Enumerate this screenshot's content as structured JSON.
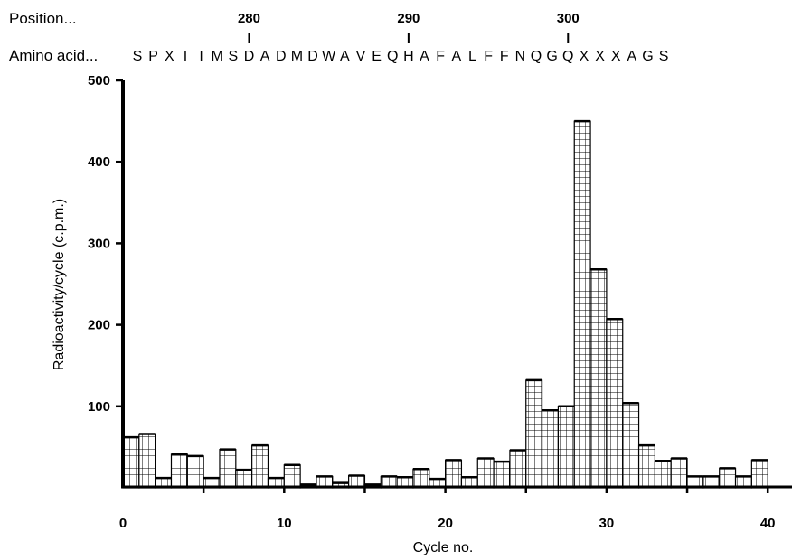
{
  "header": {
    "position_label": "Position...",
    "amino_acid_label": "Amino acid...",
    "position_marks": [
      {
        "label": "280",
        "residue_index": 7
      },
      {
        "label": "290",
        "residue_index": 17
      },
      {
        "label": "300",
        "residue_index": 27
      }
    ],
    "sequence": [
      "S",
      "P",
      "X",
      "I",
      "I",
      "M",
      "S",
      "D",
      "A",
      "D",
      "M",
      "D",
      "W",
      "A",
      "V",
      "E",
      "Q",
      "H",
      "A",
      "F",
      "A",
      "L",
      "F",
      "F",
      "N",
      "Q",
      "G",
      "Q",
      "X",
      "X",
      "X",
      "A",
      "G",
      "S"
    ]
  },
  "chart_data": {
    "type": "bar",
    "style": "histogram, grid-hatched bars, no gaps",
    "xlabel": "Cycle no.",
    "ylabel": "Radioactivity/cycle (c.p.m.)",
    "xlim": [
      0,
      42
    ],
    "ylim": [
      0,
      500
    ],
    "xticks": [
      {
        "value": 0,
        "label": "0"
      },
      {
        "value": 10,
        "label": "10"
      },
      {
        "value": 20,
        "label": "20"
      },
      {
        "value": 30,
        "label": "30"
      },
      {
        "value": 40,
        "label": "40"
      }
    ],
    "yticks": [
      {
        "value": 100,
        "label": "100"
      },
      {
        "value": 200,
        "label": "200"
      },
      {
        "value": 300,
        "label": "300"
      },
      {
        "value": 400,
        "label": "400"
      },
      {
        "value": 500,
        "label": "500"
      }
    ],
    "categories": [
      1,
      2,
      3,
      4,
      5,
      6,
      7,
      8,
      9,
      10,
      11,
      12,
      13,
      14,
      15,
      16,
      17,
      18,
      19,
      20,
      21,
      22,
      23,
      24,
      25,
      26,
      27,
      28,
      29,
      30,
      31,
      32,
      33,
      34,
      35,
      36,
      37,
      38,
      39,
      40
    ],
    "values": [
      62,
      66,
      12,
      41,
      39,
      12,
      47,
      22,
      52,
      12,
      28,
      4,
      14,
      6,
      15,
      4,
      14,
      13,
      23,
      11,
      34,
      13,
      36,
      32,
      46,
      132,
      95,
      100,
      450,
      268,
      207,
      104,
      52,
      33,
      36,
      14,
      14,
      24,
      14,
      34
    ],
    "grid": false,
    "legend": "none"
  }
}
